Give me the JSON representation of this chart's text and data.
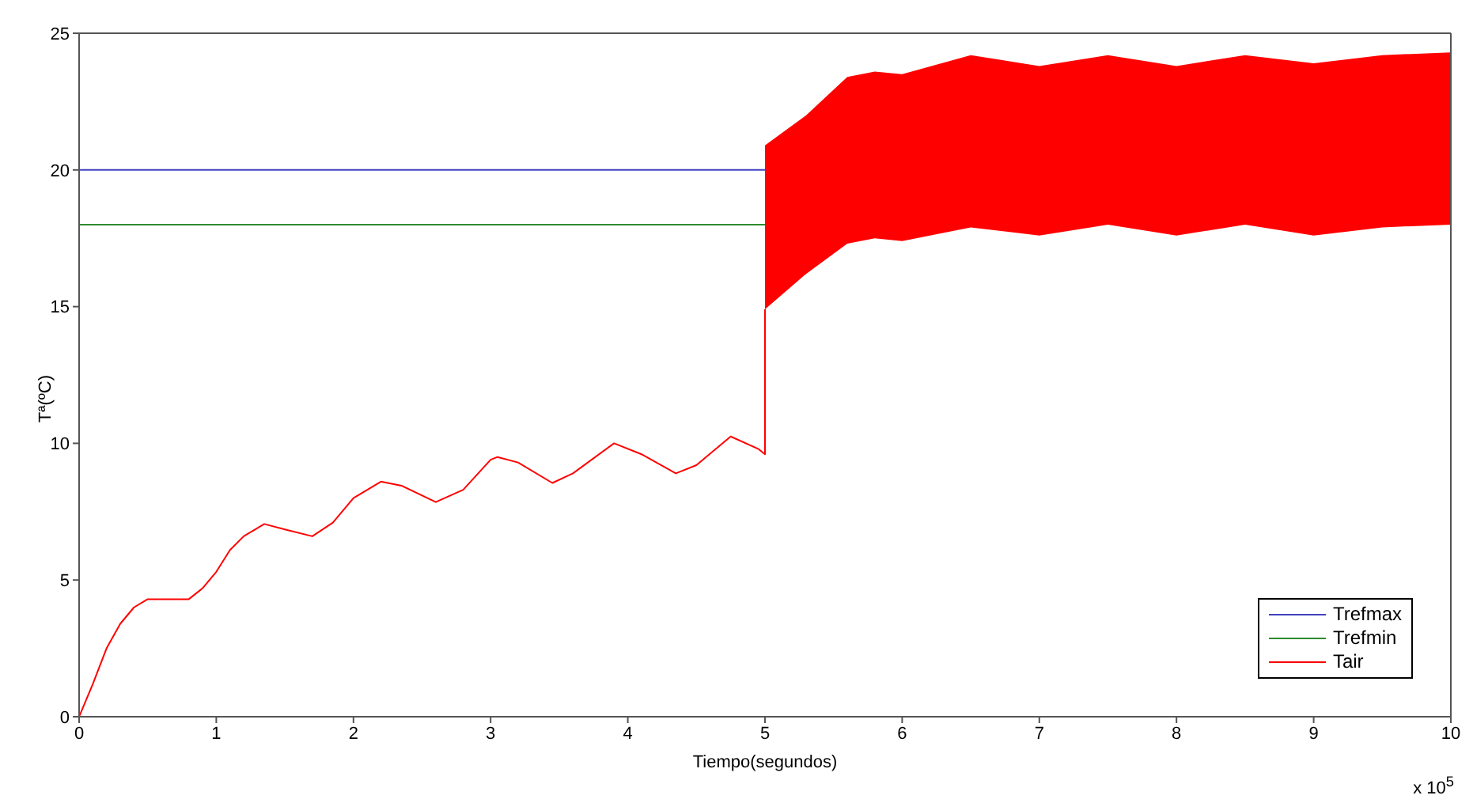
{
  "chart_data": {
    "type": "line",
    "xlabel": "Tiempo(segundos)",
    "ylabel": "Tª(ºC)",
    "annotations": [
      "x 10$^{5}$"
    ],
    "xlim": [
      0,
      10
    ],
    "xticks": [
      0,
      1,
      2,
      3,
      4,
      5,
      6,
      7,
      8,
      9,
      10
    ],
    "ylim": [
      0,
      25
    ],
    "yticks": [
      0,
      5,
      10,
      15,
      20,
      25
    ],
    "grid": false,
    "legend": "bottom right",
    "line_style": "solid",
    "marker": "none",
    "series": [
      {
        "name": "Trefmax",
        "color": "#4040c0",
        "x": [
          0,
          5
        ],
        "values": [
          20,
          20
        ]
      },
      {
        "name": "Trefmin",
        "color": "#2e8b2e",
        "x": [
          0,
          5
        ],
        "values": [
          18,
          18
        ]
      },
      {
        "name": "Tair",
        "color": "#ff0000",
        "x": [
          0,
          0.1,
          0.2,
          0.3,
          0.4,
          0.5,
          0.6,
          0.8,
          0.9,
          1.0,
          1.1,
          1.2,
          1.35,
          1.5,
          1.7,
          1.85,
          2.0,
          2.2,
          2.35,
          2.6,
          2.8,
          3.0,
          3.05,
          3.2,
          3.45,
          3.6,
          3.9,
          4.1,
          4.35,
          4.5,
          4.75,
          4.95,
          5,
          5,
          5.3,
          5.6,
          5.8,
          6.0,
          6.5,
          7.0,
          7.5,
          8.0,
          8.5,
          9.0,
          9.5,
          10
        ],
        "values": [
          0,
          1.2,
          2.5,
          3.4,
          4.0,
          4.3,
          4.3,
          4.3,
          4.7,
          5.3,
          6.1,
          6.6,
          7.05,
          6.85,
          6.6,
          7.1,
          8.0,
          8.6,
          8.45,
          7.85,
          8.3,
          9.4,
          9.5,
          9.3,
          8.55,
          8.9,
          10.0,
          9.6,
          8.9,
          9.2,
          10.25,
          9.8,
          9.6,
          14.9,
          null,
          null,
          null,
          null,
          null,
          null,
          null,
          null,
          null,
          null,
          null,
          null
        ],
        "lower": [
          null,
          null,
          null,
          null,
          null,
          null,
          null,
          null,
          null,
          null,
          null,
          null,
          null,
          null,
          null,
          null,
          null,
          null,
          null,
          null,
          null,
          null,
          null,
          null,
          null,
          null,
          null,
          null,
          null,
          null,
          null,
          null,
          null,
          14.9,
          16.2,
          17.3,
          17.5,
          17.4,
          17.9,
          17.6,
          18.0,
          17.6,
          18.0,
          17.6,
          17.9,
          18.0
        ],
        "upper": [
          null,
          null,
          null,
          null,
          null,
          null,
          null,
          null,
          null,
          null,
          null,
          null,
          null,
          null,
          null,
          null,
          null,
          null,
          null,
          null,
          null,
          null,
          null,
          null,
          null,
          null,
          null,
          null,
          null,
          null,
          null,
          null,
          null,
          20.9,
          22.0,
          23.4,
          23.6,
          23.5,
          24.2,
          23.8,
          24.2,
          23.8,
          24.2,
          23.9,
          24.2,
          24.3
        ]
      }
    ]
  }
}
